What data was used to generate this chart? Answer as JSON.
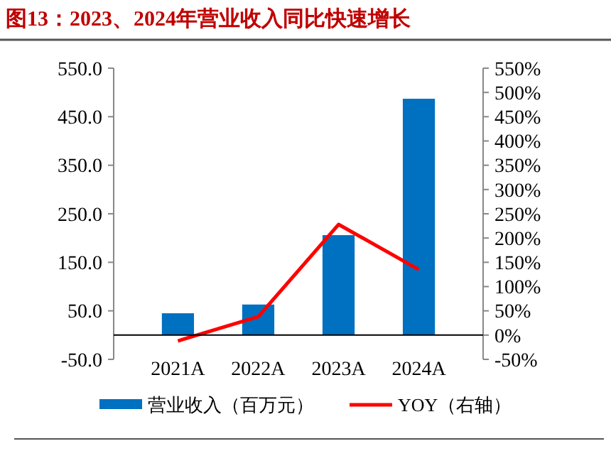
{
  "chart_data": {
    "type": "bar",
    "title": "图13：2023、2024年营业收入同比快速增长",
    "categories": [
      "2021A",
      "2022A",
      "2023A",
      "2024A"
    ],
    "series": [
      {
        "name": "营业收入（百万元）",
        "color": "#0070c0",
        "values": [
          45,
          63,
          206,
          487
        ]
      },
      {
        "name": "YOY（右轴）",
        "type": "line",
        "axis": "y2",
        "color": "#ff0000",
        "values": [
          -12,
          38,
          228,
          135
        ]
      }
    ],
    "ylim": [
      -50,
      550
    ],
    "yticks": [
      {
        "value": -50,
        "label": "-50.0"
      },
      {
        "value": 50,
        "label": "50.0"
      },
      {
        "value": 150,
        "label": "150.0"
      },
      {
        "value": 250,
        "label": "250.0"
      },
      {
        "value": 350,
        "label": "350.0"
      },
      {
        "value": 450,
        "label": "450.0"
      },
      {
        "value": 550,
        "label": "550.0"
      }
    ],
    "y2lim": [
      -50,
      550
    ],
    "y2ticks": [
      {
        "value": -50,
        "label": "-50%"
      },
      {
        "value": 0,
        "label": "0%"
      },
      {
        "value": 50,
        "label": "50%"
      },
      {
        "value": 100,
        "label": "100%"
      },
      {
        "value": 150,
        "label": "150%"
      },
      {
        "value": 200,
        "label": "200%"
      },
      {
        "value": 250,
        "label": "250%"
      },
      {
        "value": 300,
        "label": "300%"
      },
      {
        "value": 350,
        "label": "350%"
      },
      {
        "value": 400,
        "label": "400%"
      },
      {
        "value": 450,
        "label": "450%"
      },
      {
        "value": 500,
        "label": "500%"
      },
      {
        "value": 550,
        "label": "550%"
      }
    ],
    "legend": "bottom",
    "marker": "none",
    "line_style": "solid"
  }
}
